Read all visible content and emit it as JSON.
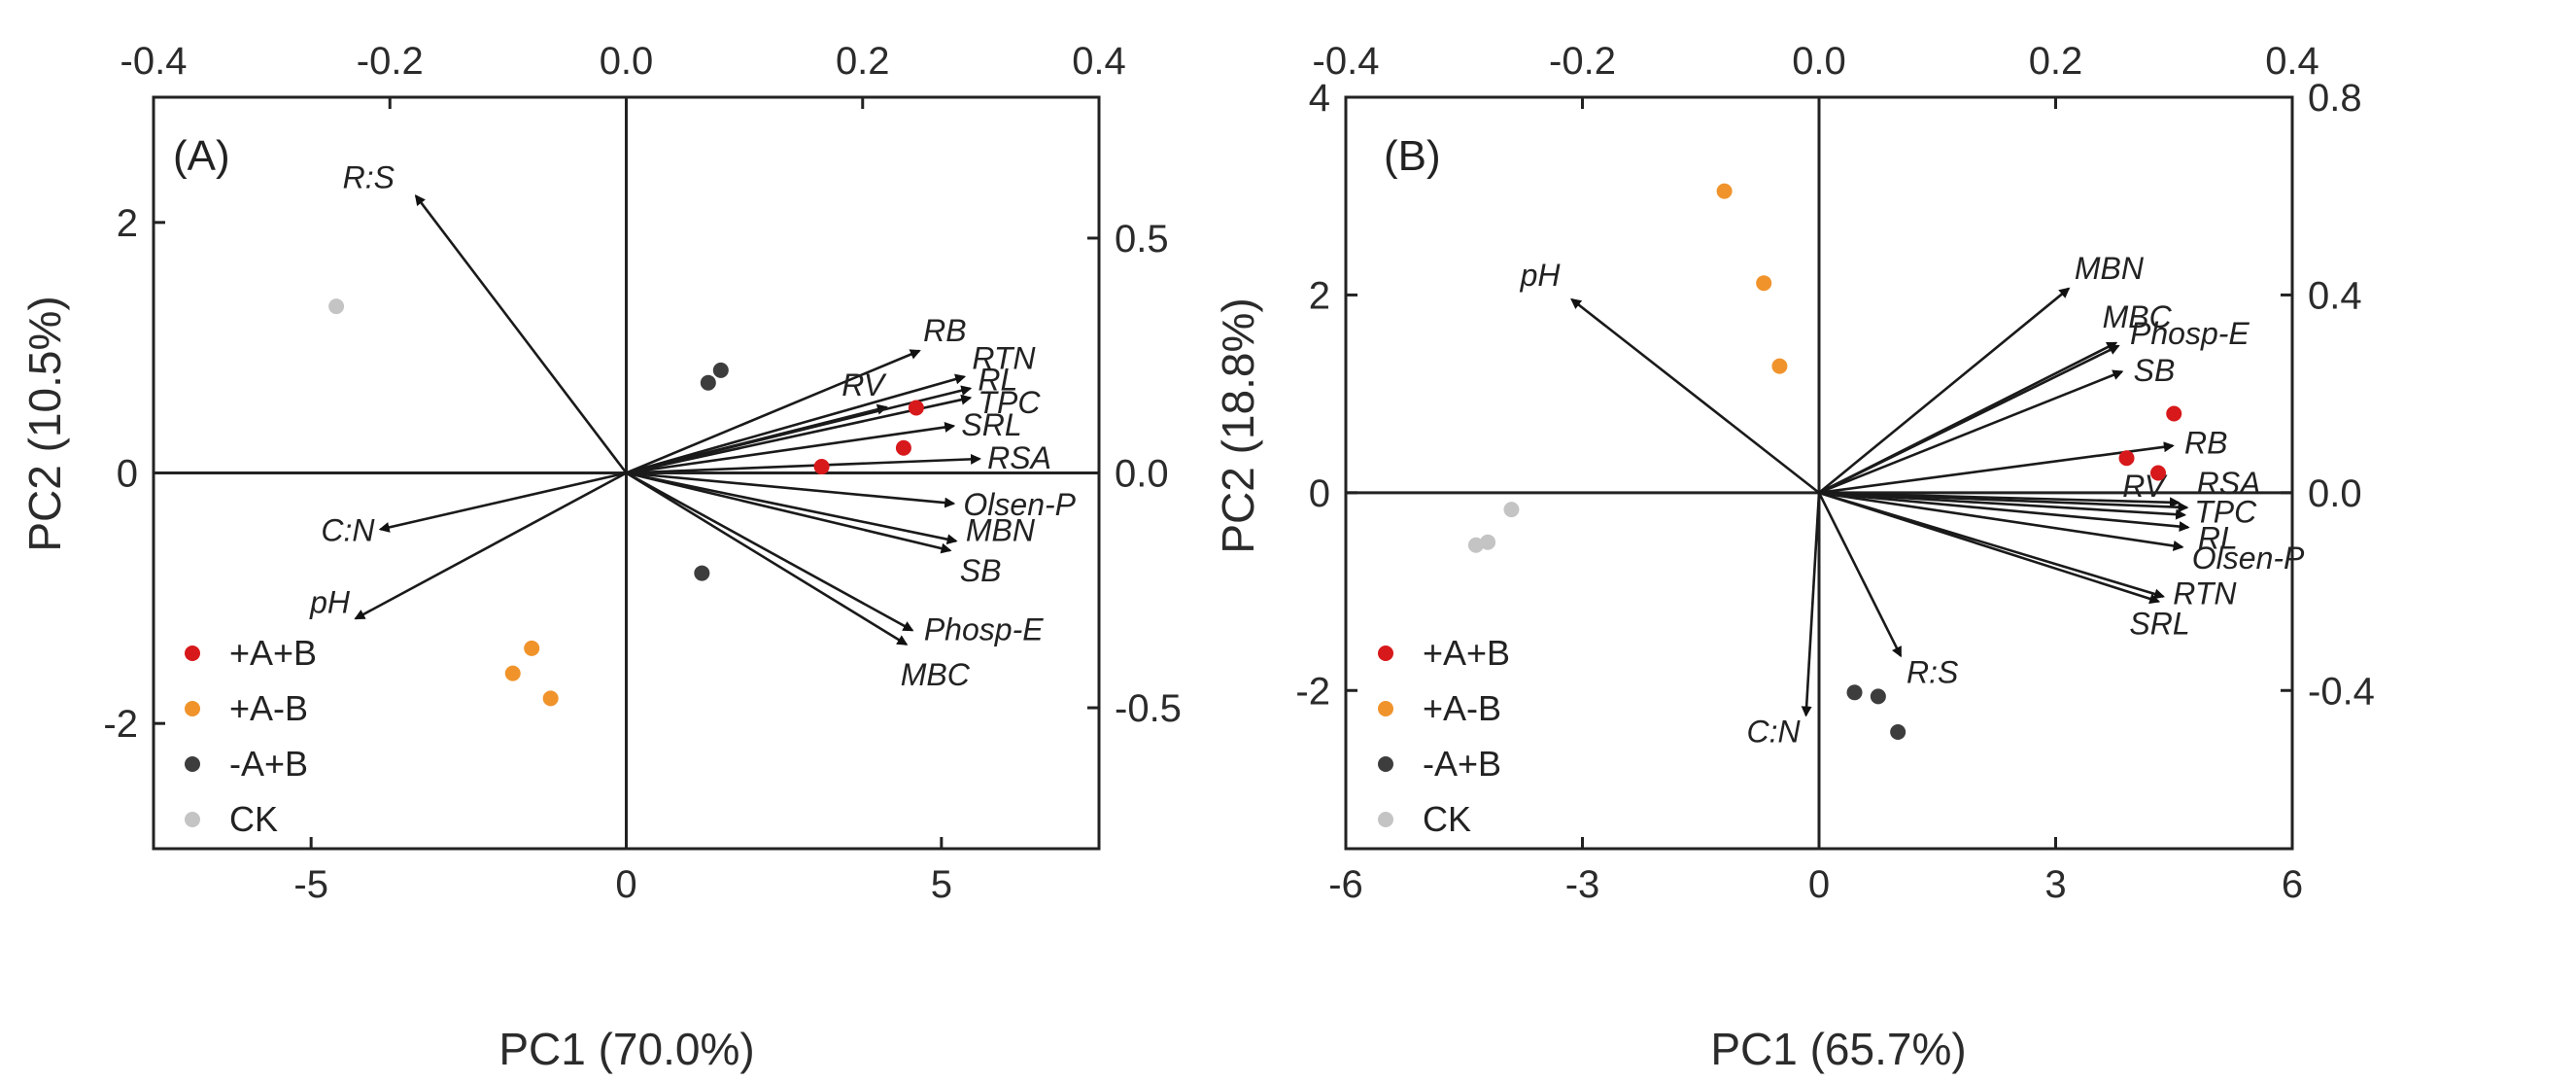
{
  "chart_data": [
    {
      "type": "scatter",
      "panel_label": "(A)",
      "xlabel": "PC1 (70.0%)",
      "ylabel": "PC2 (10.5%)",
      "xlim": [
        -7.5,
        7.5
      ],
      "ylim": [
        -3.0,
        3.0
      ],
      "x_ticks": [
        -5,
        0,
        5
      ],
      "x_tick_labels": [
        "-5",
        "0",
        "5"
      ],
      "y_ticks": [
        -2,
        0,
        2
      ],
      "y_tick_labels": [
        "-2",
        "0",
        "2"
      ],
      "top_xlim": [
        -0.4,
        0.4
      ],
      "top_ticks": [
        -0.4,
        -0.2,
        0.0,
        0.2,
        0.4
      ],
      "top_tick_labels": [
        "-0.4",
        "-0.2",
        "0.0",
        "0.2",
        "0.4"
      ],
      "right_ylim": [
        -0.8,
        0.8
      ],
      "right_ticks": [
        -0.5,
        0.0,
        0.5
      ],
      "right_tick_labels": [
        "-0.5",
        "0.0",
        "0.5"
      ],
      "legend": [
        {
          "name": "+A+B",
          "color": "#d7191c"
        },
        {
          "name": "+A-B",
          "color": "#f0932b"
        },
        {
          "name": "-A+B",
          "color": "#3d3d3d"
        },
        {
          "name": "CK",
          "color": "#c4c4c4"
        }
      ],
      "legend_position": "bottom-left",
      "series": [
        {
          "name": "+A+B",
          "color": "#d7191c",
          "points": [
            [
              4.6,
              0.52
            ],
            [
              4.4,
              0.2
            ],
            [
              3.1,
              0.05
            ]
          ]
        },
        {
          "name": "+A-B",
          "color": "#f0932b",
          "points": [
            [
              -1.5,
              -1.4
            ],
            [
              -1.8,
              -1.6
            ],
            [
              -1.2,
              -1.8
            ]
          ]
        },
        {
          "name": "-A+B",
          "color": "#3d3d3d",
          "points": [
            [
              1.5,
              0.82
            ],
            [
              1.3,
              0.72
            ],
            [
              1.2,
              -0.8
            ]
          ]
        },
        {
          "name": "CK",
          "color": "#c4c4c4",
          "points": [
            [
              -4.6,
              1.33
            ]
          ]
        }
      ],
      "loadings": [
        {
          "name": "R:S",
          "x": -0.178,
          "y": 0.59
        },
        {
          "name": "RB",
          "x": 0.248,
          "y": 0.26
        },
        {
          "name": "RTN",
          "x": 0.286,
          "y": 0.205
        },
        {
          "name": "RV",
          "x": 0.22,
          "y": 0.14
        },
        {
          "name": "RL",
          "x": 0.291,
          "y": 0.18
        },
        {
          "name": "TPC",
          "x": 0.291,
          "y": 0.16
        },
        {
          "name": "SRL",
          "x": 0.277,
          "y": 0.1
        },
        {
          "name": "RSA",
          "x": 0.299,
          "y": 0.03
        },
        {
          "name": "Olsen-P",
          "x": 0.277,
          "y": -0.065
        },
        {
          "name": "MBN",
          "x": 0.279,
          "y": -0.145
        },
        {
          "name": "SB",
          "x": 0.274,
          "y": -0.165
        },
        {
          "name": "Phosp-E",
          "x": 0.242,
          "y": -0.335
        },
        {
          "name": "MBC",
          "x": 0.237,
          "y": -0.365
        },
        {
          "name": "C:N",
          "x": -0.208,
          "y": -0.12
        },
        {
          "name": "pH",
          "x": -0.229,
          "y": -0.31
        }
      ]
    },
    {
      "type": "scatter",
      "panel_label": "(B)",
      "xlabel": "PC1 (65.7%)",
      "ylabel": "PC2 (18.8%)",
      "xlim": [
        -6.0,
        6.0
      ],
      "ylim": [
        -3.6,
        4.0
      ],
      "x_ticks": [
        -6,
        -3,
        0,
        3,
        6
      ],
      "x_tick_labels": [
        "-6",
        "-3",
        "0",
        "3",
        "6"
      ],
      "y_ticks": [
        -2,
        0,
        2,
        4
      ],
      "y_tick_labels": [
        "-2",
        "0",
        "2",
        "4"
      ],
      "top_xlim": [
        -0.4,
        0.4
      ],
      "top_ticks": [
        -0.4,
        -0.2,
        0.0,
        0.2,
        0.4
      ],
      "top_tick_labels": [
        "-0.4",
        "-0.2",
        "0.0",
        "0.2",
        "0.4"
      ],
      "right_ylim": [
        -0.72,
        0.8
      ],
      "right_ticks": [
        -0.4,
        0.0,
        0.4,
        0.8
      ],
      "right_tick_labels": [
        "-0.4",
        "0.0",
        "0.4",
        "0.8"
      ],
      "legend": [
        {
          "name": "+A+B",
          "color": "#d7191c"
        },
        {
          "name": "+A-B",
          "color": "#f0932b"
        },
        {
          "name": "-A+B",
          "color": "#3d3d3d"
        },
        {
          "name": "CK",
          "color": "#c4c4c4"
        }
      ],
      "legend_position": "bottom-left",
      "series": [
        {
          "name": "+A+B",
          "color": "#d7191c",
          "points": [
            [
              4.5,
              0.8
            ],
            [
              3.9,
              0.35
            ],
            [
              4.3,
              0.2
            ]
          ]
        },
        {
          "name": "+A-B",
          "color": "#f0932b",
          "points": [
            [
              -1.2,
              3.05
            ],
            [
              -0.7,
              2.12
            ],
            [
              -0.5,
              1.28
            ]
          ]
        },
        {
          "name": "-A+B",
          "color": "#3d3d3d",
          "points": [
            [
              0.45,
              -2.02
            ],
            [
              0.75,
              -2.06
            ],
            [
              1.0,
              -2.42
            ]
          ]
        },
        {
          "name": "CK",
          "color": "#c4c4c4",
          "points": [
            [
              -3.9,
              -0.17
            ],
            [
              -4.2,
              -0.5
            ],
            [
              -4.35,
              -0.53
            ]
          ]
        }
      ],
      "loadings": [
        {
          "name": "MBN",
          "x": 0.211,
          "y": 0.413
        },
        {
          "name": "MBC",
          "x": 0.251,
          "y": 0.303
        },
        {
          "name": "Phosp-E",
          "x": 0.253,
          "y": 0.297
        },
        {
          "name": "SB",
          "x": 0.256,
          "y": 0.245
        },
        {
          "name": "pH",
          "x": -0.209,
          "y": 0.391
        },
        {
          "name": "RB",
          "x": 0.299,
          "y": 0.095
        },
        {
          "name": "RV",
          "x": 0.304,
          "y": -0.02
        },
        {
          "name": "RSA",
          "x": 0.311,
          "y": -0.03
        },
        {
          "name": "TPC",
          "x": 0.309,
          "y": -0.045
        },
        {
          "name": "RL",
          "x": 0.312,
          "y": -0.07
        },
        {
          "name": "Olsen-P",
          "x": 0.307,
          "y": -0.11
        },
        {
          "name": "RTN",
          "x": 0.291,
          "y": -0.21
        },
        {
          "name": "SRL",
          "x": 0.287,
          "y": -0.22
        },
        {
          "name": "R:S",
          "x": 0.069,
          "y": -0.33
        },
        {
          "name": "C:N",
          "x": -0.011,
          "y": -0.45
        }
      ]
    }
  ]
}
